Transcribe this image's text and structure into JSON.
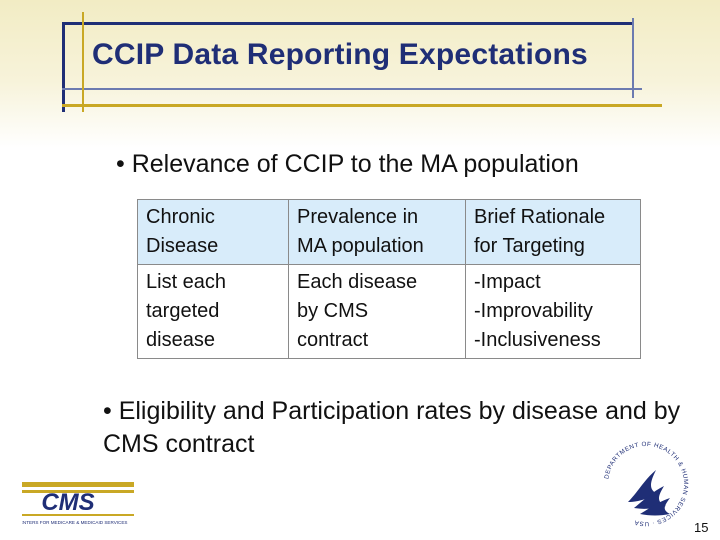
{
  "slide": {
    "title": "CCIP Data Reporting Expectations",
    "bullet1": "• Relevance of CCIP to the MA population",
    "table": {
      "headers": [
        [
          "Chronic",
          "Disease"
        ],
        [
          "Prevalence in",
          "MA population"
        ],
        [
          "Brief Rationale",
          "for Targeting"
        ]
      ],
      "row": [
        [
          "List each",
          "targeted",
          "disease"
        ],
        [
          "Each disease",
          "by CMS",
          "contract"
        ],
        [
          "-Impact",
          "-Improvability",
          "-Inclusiveness"
        ]
      ]
    },
    "bullet2": "• Eligibility and Participation rates by disease and by CMS contract",
    "page_number": "15"
  },
  "logos": {
    "cms_wordmark": "CMS",
    "cms_tagline": "CENTERS FOR MEDICARE & MEDICAID SERVICES",
    "hhs_seal_text": "DEPARTMENT OF HEALTH & HUMAN SERVICES · USA"
  },
  "colors": {
    "title": "#1f2e76",
    "band": "#f2ecc4",
    "accent_gold": "#c9a825",
    "header_cell": "#d8ecfa"
  }
}
